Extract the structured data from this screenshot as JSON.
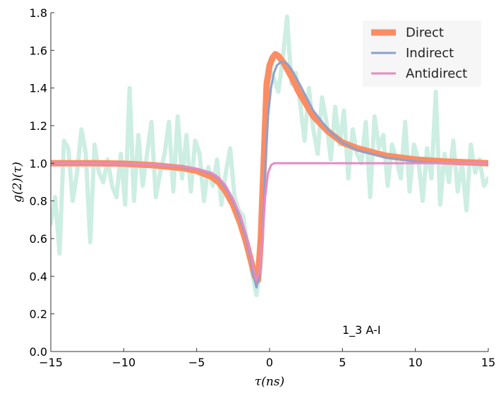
{
  "chart_data": {
    "type": "line",
    "xlabel": "τ(ns)",
    "ylabel": "g(2)(τ)",
    "xlim": [
      -15,
      15
    ],
    "ylim": [
      0,
      1.8
    ],
    "xticks": [
      -15,
      -10,
      -5,
      0,
      5,
      10,
      15
    ],
    "xtick_labels": [
      "−15",
      "−10",
      "−5",
      "0",
      "5",
      "10",
      "15"
    ],
    "yticks": [
      0.0,
      0.2,
      0.4,
      0.6,
      0.8,
      1.0,
      1.2,
      1.4,
      1.6,
      1.8
    ],
    "ytick_labels": [
      "0.0",
      "0.2",
      "0.4",
      "0.6",
      "0.8",
      "1.0",
      "1.2",
      "1.4",
      "1.6",
      "1.8"
    ],
    "grid": false,
    "legend_position": "top-right",
    "annotation": "1_3 A-I",
    "colors": {
      "measured": "#cdeee2",
      "direct": "#fc8d62",
      "indirect": "#8da0cb",
      "antidirect": "#e78ac3"
    },
    "series": [
      {
        "key": "measured",
        "x": [
          -15,
          -14.7,
          -14.4,
          -14.1,
          -13.8,
          -13.5,
          -13.2,
          -12.9,
          -12.6,
          -12.3,
          -12,
          -11.7,
          -11.4,
          -11.1,
          -10.8,
          -10.5,
          -10.2,
          -9.9,
          -9.6,
          -9.3,
          -9,
          -8.7,
          -8.4,
          -8.1,
          -7.8,
          -7.5,
          -7.2,
          -6.9,
          -6.6,
          -6.3,
          -6,
          -5.7,
          -5.4,
          -5.1,
          -4.8,
          -4.5,
          -4.2,
          -3.9,
          -3.6,
          -3.3,
          -3,
          -2.7,
          -2.4,
          -2.1,
          -1.8,
          -1.5,
          -1.2,
          -0.9,
          -0.6,
          -0.3,
          0,
          0.3,
          0.6,
          0.9,
          1.2,
          1.5,
          1.8,
          2.1,
          2.4,
          2.7,
          3,
          3.3,
          3.6,
          3.9,
          4.2,
          4.5,
          4.8,
          5.1,
          5.4,
          5.7,
          6,
          6.3,
          6.6,
          6.9,
          7.2,
          7.5,
          7.8,
          8.1,
          8.4,
          8.7,
          9,
          9.3,
          9.6,
          9.9,
          10.2,
          10.5,
          10.8,
          11.1,
          11.4,
          11.7,
          12,
          12.3,
          12.6,
          12.9,
          13.2,
          13.5,
          13.8,
          14.1,
          14.4,
          14.7,
          15
        ],
        "y": [
          0.68,
          0.82,
          0.52,
          1.12,
          1.08,
          0.8,
          0.95,
          1.18,
          1.05,
          0.58,
          1.1,
          0.95,
          0.9,
          1.02,
          0.88,
          0.82,
          1.05,
          0.78,
          1.4,
          0.8,
          1.15,
          0.88,
          1.05,
          1.22,
          0.82,
          0.95,
          1.05,
          1.22,
          0.85,
          1.25,
          0.92,
          1.15,
          0.85,
          1.12,
          1.05,
          0.8,
          0.98,
          0.88,
          1.02,
          0.78,
          0.95,
          1.08,
          0.82,
          0.75,
          0.72,
          0.55,
          0.42,
          0.3,
          0.45,
          1.05,
          1.5,
          1.45,
          1.38,
          1.55,
          1.78,
          1.42,
          1.48,
          1.32,
          1.12,
          1.4,
          1.18,
          1.05,
          1.35,
          1.22,
          1.02,
          1.3,
          1.1,
          1.28,
          0.92,
          1.18,
          1.05,
          1.0,
          1.22,
          0.82,
          1.25,
          1.08,
          1.15,
          0.88,
          1.1,
          1.02,
          0.92,
          1.22,
          0.85,
          1.1,
          1.02,
          0.8,
          1.08,
          0.92,
          1.38,
          0.78,
          1.05,
          0.9,
          1.12,
          0.85,
          1.0,
          0.75,
          1.1,
          0.95,
          1.02,
          0.88,
          0.92
        ]
      },
      {
        "key": "direct",
        "name": "Direct",
        "x": [
          -15,
          -12,
          -10,
          -8,
          -6,
          -5,
          -4,
          -3.5,
          -3,
          -2.5,
          -2,
          -1.6,
          -1.3,
          -1,
          -0.8,
          -0.6,
          -0.4,
          -0.2,
          0,
          0.2,
          0.4,
          0.6,
          1,
          1.5,
          2,
          3,
          4,
          5,
          6,
          8,
          10,
          12,
          15
        ],
        "y": [
          1.0,
          1.0,
          0.998,
          0.99,
          0.975,
          0.96,
          0.93,
          0.9,
          0.85,
          0.78,
          0.68,
          0.58,
          0.49,
          0.4,
          0.38,
          0.6,
          1.0,
          1.42,
          1.52,
          1.56,
          1.58,
          1.57,
          1.53,
          1.46,
          1.38,
          1.25,
          1.17,
          1.11,
          1.08,
          1.04,
          1.02,
          1.01,
          1.0
        ]
      },
      {
        "key": "indirect",
        "name": "Indirect",
        "x": [
          -15,
          -12,
          -10,
          -8,
          -6,
          -5,
          -4,
          -3.5,
          -3,
          -2.5,
          -2,
          -1.6,
          -1.3,
          -1.1,
          -0.9,
          -0.7,
          -0.5,
          -0.3,
          -0.1,
          0.1,
          0.3,
          0.5,
          0.8,
          1.2,
          1.5,
          2,
          3,
          4,
          5,
          6,
          8,
          10,
          12,
          15
        ],
        "y": [
          1.0,
          1.0,
          0.998,
          0.992,
          0.98,
          0.97,
          0.945,
          0.92,
          0.87,
          0.8,
          0.7,
          0.6,
          0.5,
          0.4,
          0.34,
          0.4,
          0.6,
          0.95,
          1.25,
          1.4,
          1.48,
          1.52,
          1.54,
          1.53,
          1.5,
          1.43,
          1.28,
          1.18,
          1.11,
          1.07,
          1.03,
          1.01,
          1.0,
          1.0
        ]
      },
      {
        "key": "antidirect",
        "name": "Antidirect",
        "x": [
          -15,
          -12,
          -10,
          -8,
          -6,
          -5,
          -4,
          -3.5,
          -3,
          -2.5,
          -2,
          -1.6,
          -1.3,
          -1.1,
          -0.9,
          -0.7,
          -0.5,
          -0.3,
          -0.1,
          0.1,
          0.3,
          0.6,
          1,
          2,
          4,
          6,
          8,
          10,
          15
        ],
        "y": [
          1.0,
          1.0,
          0.998,
          0.993,
          0.982,
          0.972,
          0.95,
          0.925,
          0.88,
          0.81,
          0.72,
          0.62,
          0.52,
          0.44,
          0.38,
          0.42,
          0.58,
          0.82,
          0.95,
          0.99,
          1.0,
          1.0,
          1.0,
          1.0,
          1.0,
          1.0,
          1.0,
          1.0,
          1.0
        ]
      }
    ]
  }
}
